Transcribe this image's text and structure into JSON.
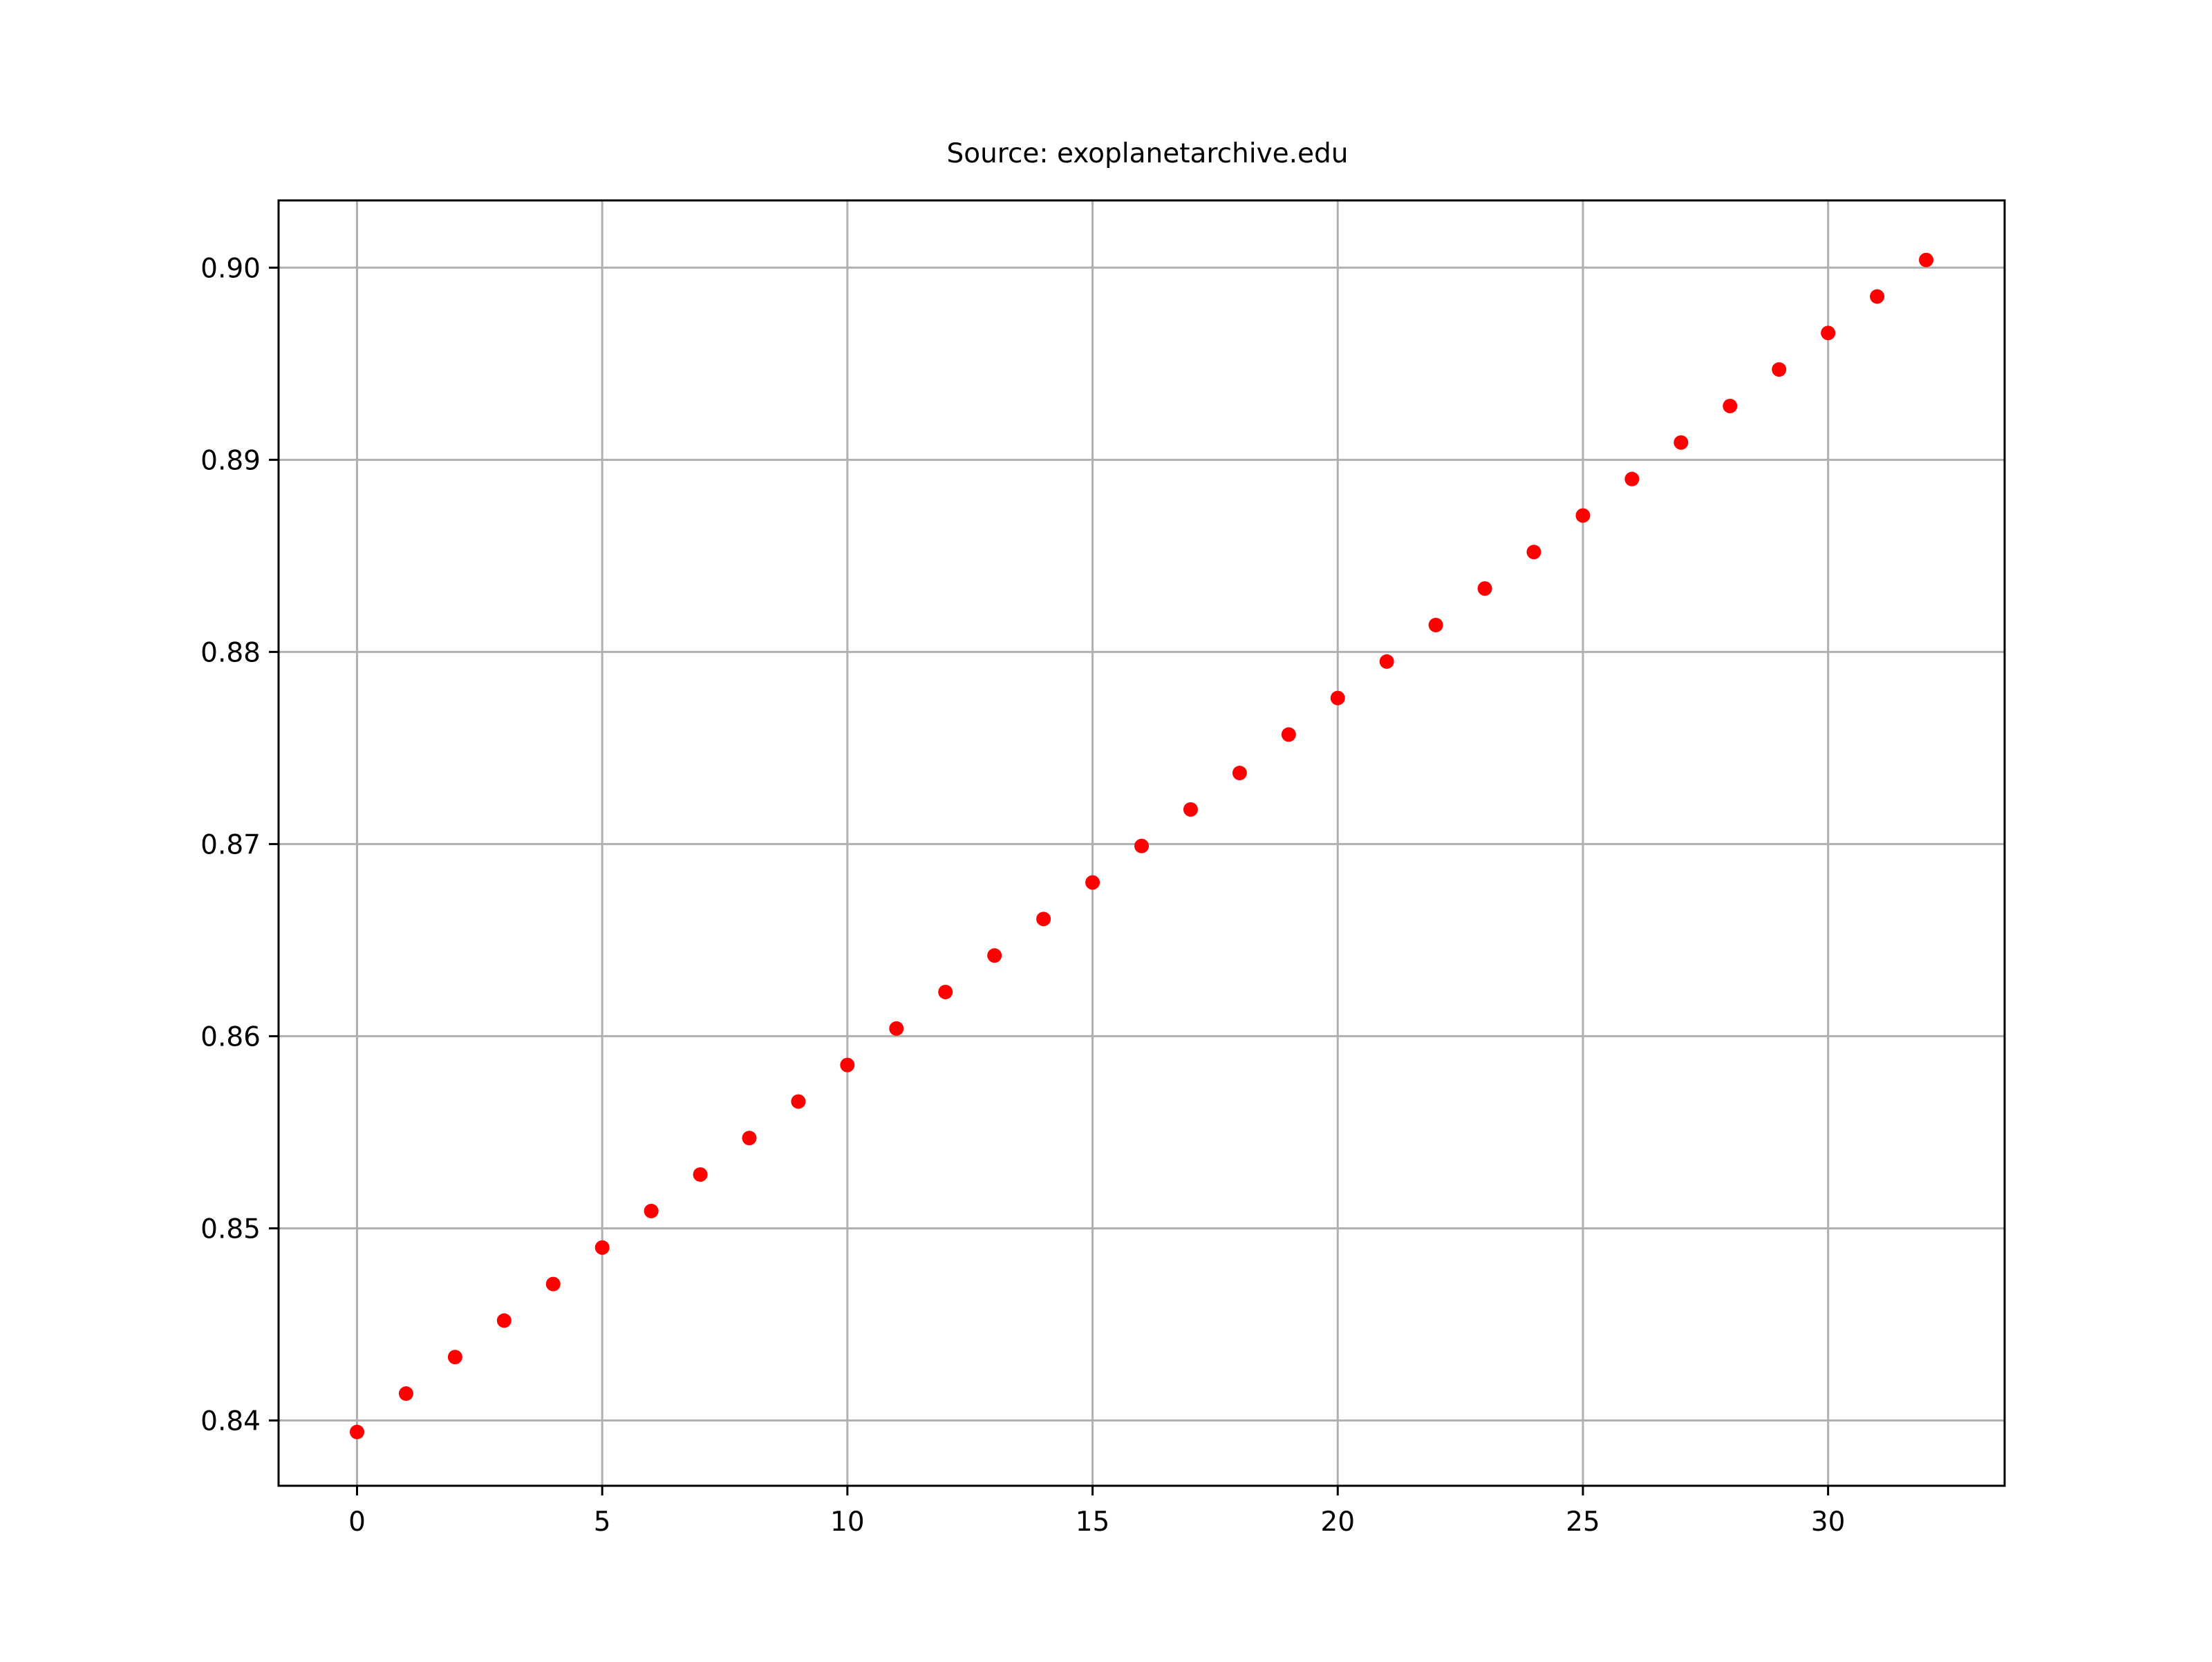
{
  "chart_data": {
    "type": "scatter",
    "title": "Source: exoplanetarchive.edu",
    "xlabel": "",
    "ylabel": "",
    "xlim": [
      -1.6,
      33.6
    ],
    "ylim": [
      0.8366,
      0.9035
    ],
    "x_ticks": [
      0,
      5,
      10,
      15,
      20,
      25,
      30
    ],
    "x_tick_labels": [
      "0",
      "5",
      "10",
      "15",
      "20",
      "25",
      "30"
    ],
    "y_ticks": [
      0.84,
      0.85,
      0.86,
      0.87,
      0.88,
      0.89,
      0.9
    ],
    "y_tick_labels": [
      "0.84",
      "0.85",
      "0.86",
      "0.87",
      "0.88",
      "0.89",
      "0.90"
    ],
    "grid": true,
    "marker_color": "#ff0000",
    "series": [
      {
        "x": [
          0,
          1,
          2,
          3,
          4,
          5,
          6,
          7,
          8,
          9,
          10,
          11,
          12,
          13,
          14,
          15,
          16,
          17,
          18,
          19,
          20,
          21,
          22,
          23,
          24,
          25,
          26,
          27,
          28,
          29,
          30,
          31,
          32
        ],
        "values": [
          0.8394,
          0.8414,
          0.8433,
          0.8452,
          0.8471,
          0.849,
          0.8509,
          0.8528,
          0.8547,
          0.8566,
          0.8585,
          0.8604,
          0.8623,
          0.8642,
          0.8661,
          0.868,
          0.8699,
          0.8718,
          0.8737,
          0.8757,
          0.8776,
          0.8795,
          0.8814,
          0.8833,
          0.8852,
          0.8871,
          0.889,
          0.8909,
          0.8928,
          0.8947,
          0.8966,
          0.8985,
          0.9004
        ]
      }
    ]
  }
}
